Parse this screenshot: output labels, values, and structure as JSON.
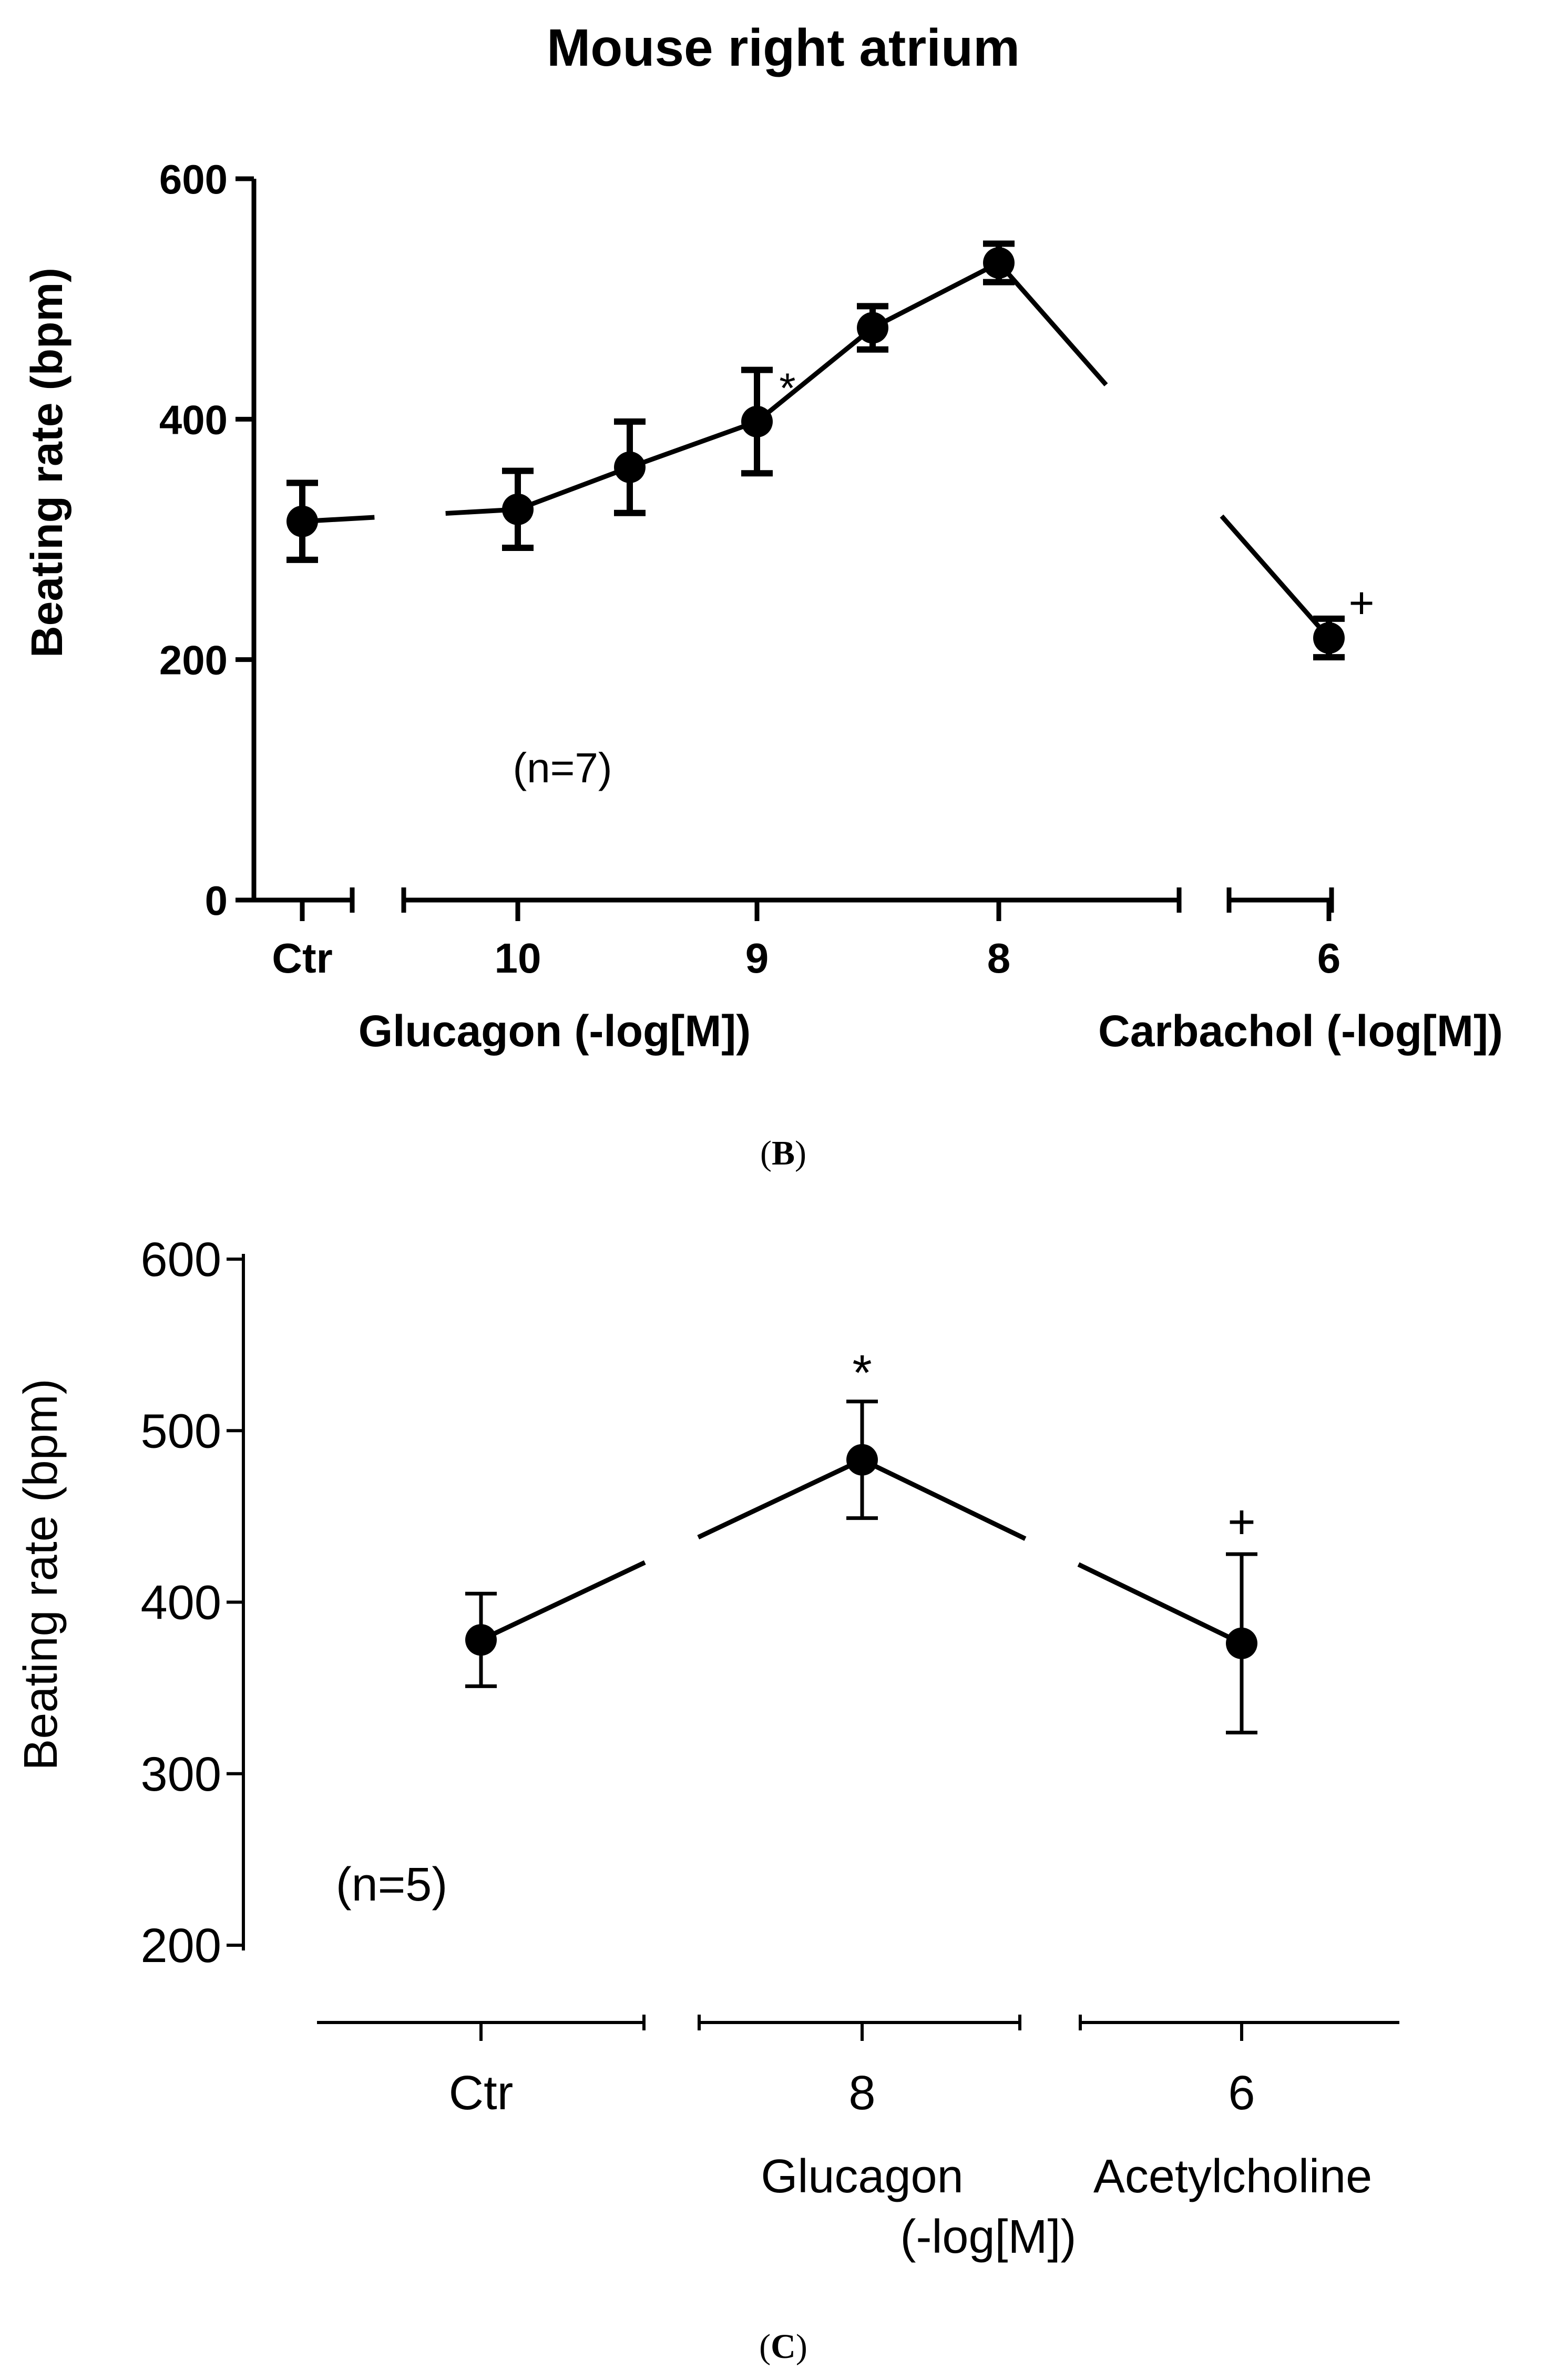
{
  "chart_data": [
    {
      "type": "line",
      "panel": "B",
      "panel_label": "B",
      "title": "Mouse right atrium",
      "ylabel": "Beating rate (bpm)",
      "ylim": [
        0,
        600
      ],
      "yticks": [
        0,
        200,
        400,
        600
      ],
      "ytick_labels": [
        "0",
        "200",
        "400",
        "600"
      ],
      "n_label": "(n=7)",
      "error_bars": "SEM",
      "groups": [
        {
          "label": "Glucagon (-log[M])",
          "tick_labels": [
            "10",
            "9",
            "8"
          ]
        },
        {
          "label": "Carbachol (-log[M])",
          "tick_labels": [
            "6"
          ]
        }
      ],
      "ctr_label": "Ctr",
      "points": [
        {
          "x": "Ctr",
          "y": 315,
          "err": 32,
          "mark": ""
        },
        {
          "x": "10",
          "y": 325,
          "err": 32,
          "mark": ""
        },
        {
          "x": "9.5",
          "y": 360,
          "err": 38,
          "mark": ""
        },
        {
          "x": "9",
          "y": 398,
          "err": 43,
          "mark": "*"
        },
        {
          "x": "8.5",
          "y": 476,
          "err": 18,
          "mark": ""
        },
        {
          "x": "8",
          "y": 530,
          "err": 16,
          "mark": ""
        },
        {
          "x": "6",
          "y": 218,
          "err": 16,
          "mark": "+"
        }
      ]
    },
    {
      "type": "line",
      "panel": "C",
      "panel_label": "C",
      "title": "",
      "ylabel": "Beating rate (bpm)",
      "ylim": [
        200,
        600
      ],
      "yticks": [
        200,
        300,
        400,
        500,
        600
      ],
      "ytick_labels": [
        "200",
        "300",
        "400",
        "500",
        "600"
      ],
      "n_label": "(n=5)",
      "error_bars": "SEM",
      "categories": [
        "Ctr",
        "8",
        "6"
      ],
      "category_group_labels": [
        "",
        "Glucagon",
        "Acetylcholine"
      ],
      "shared_unit_label": "(-log[M])",
      "points": [
        {
          "x": "Ctr",
          "y": 378,
          "err": 27,
          "mark": ""
        },
        {
          "x": "8",
          "y": 483,
          "err": 34,
          "mark": "*"
        },
        {
          "x": "6",
          "y": 376,
          "err": 52,
          "mark": "+"
        }
      ]
    }
  ]
}
